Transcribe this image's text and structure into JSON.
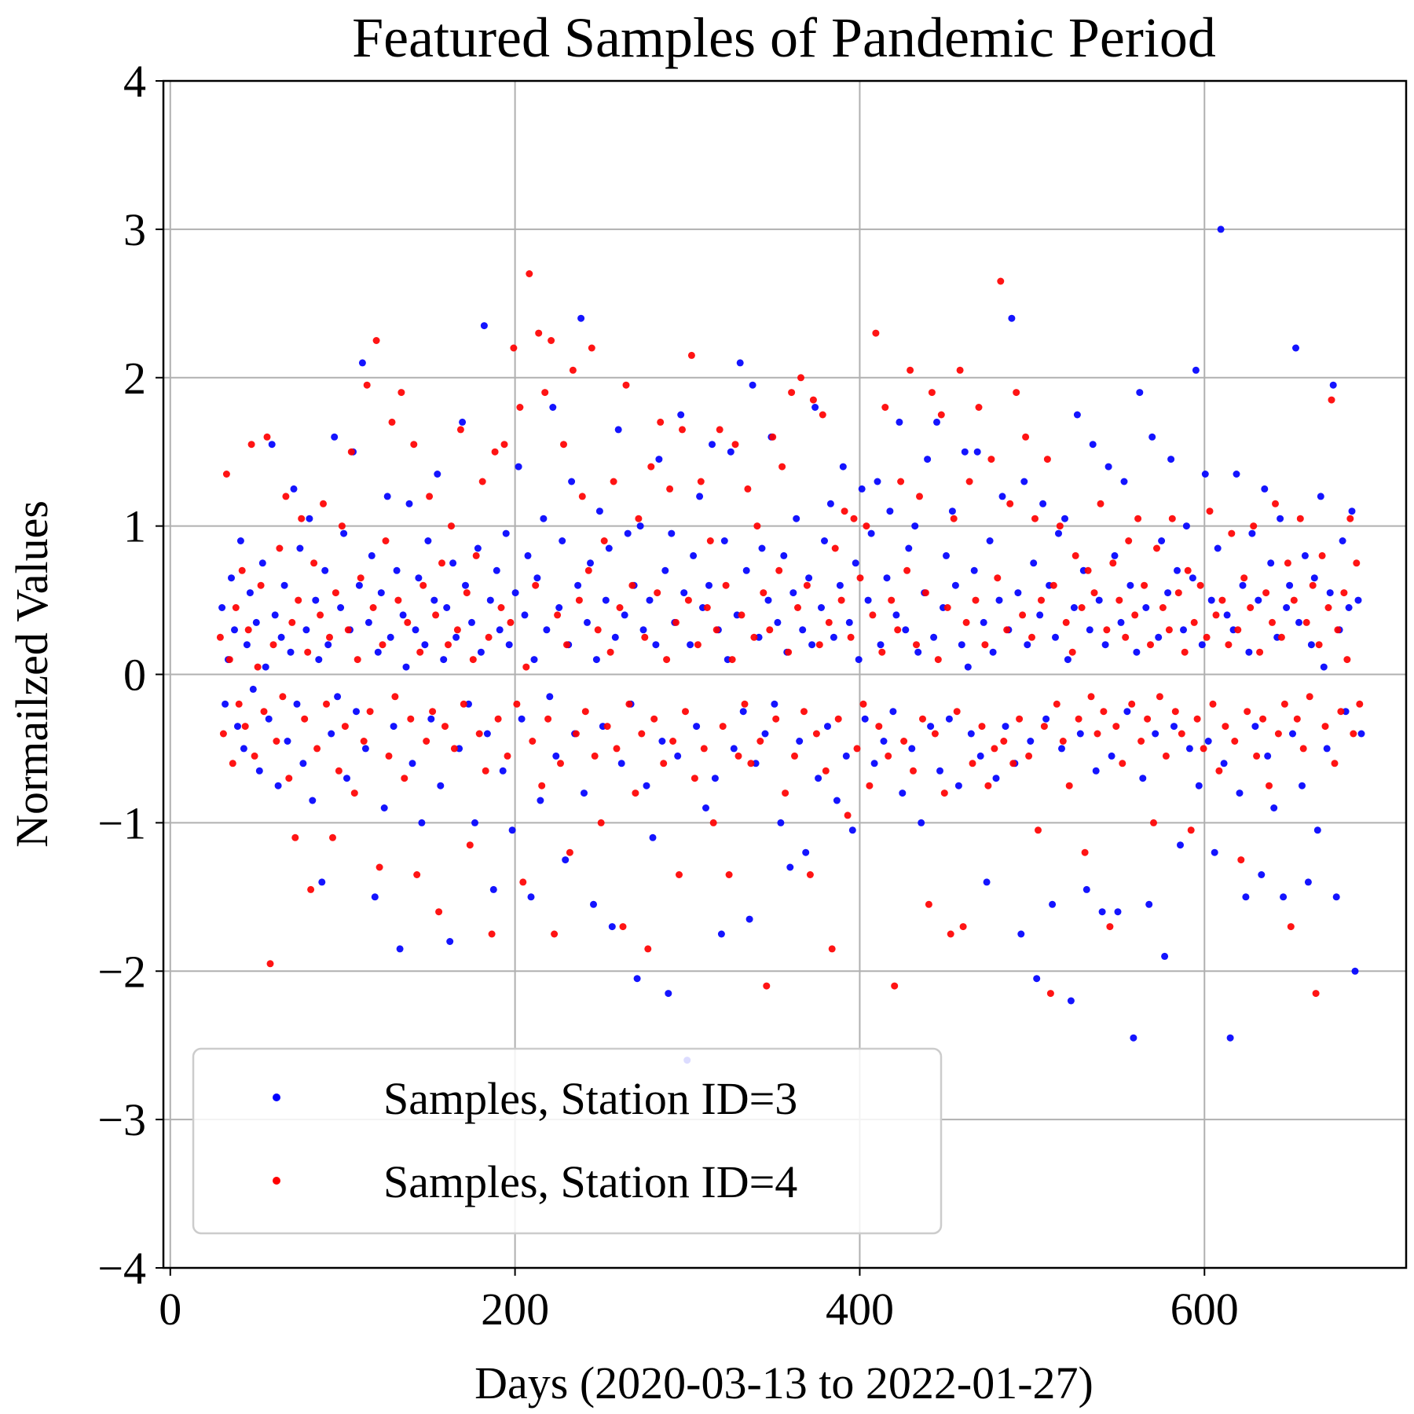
{
  "chart_data": {
    "type": "scatter",
    "title": "Featured Samples of Pandemic Period",
    "xlabel": "Days (2020-03-13 to 2022-01-27)",
    "ylabel": "Normailzed Values",
    "xlim": [
      -4,
      717
    ],
    "ylim": [
      -4,
      4
    ],
    "x_ticks": [
      0,
      200,
      400,
      600
    ],
    "y_ticks": [
      -4,
      -3,
      -2,
      -1,
      0,
      1,
      2,
      3,
      4
    ],
    "x_tick_labels": [
      "0",
      "200",
      "400",
      "600"
    ],
    "y_tick_labels": [
      "−4",
      "−3",
      "−2",
      "−1",
      "0",
      "1",
      "2",
      "3",
      "4"
    ],
    "grid": true,
    "legend_position": "lower-left",
    "series": [
      {
        "name": "Samples, Station ID=3",
        "color": "#0000ff",
        "x_start": 30,
        "x_end": 691,
        "values": [
          0.45,
          -0.2,
          0.1,
          0.65,
          0.3,
          -0.35,
          0.9,
          -0.5,
          0.2,
          0.55,
          -0.1,
          0.35,
          -0.65,
          0.75,
          0.05,
          -0.3,
          1.55,
          0.4,
          -0.75,
          0.25,
          0.6,
          -0.45,
          0.15,
          1.25,
          -0.2,
          0.85,
          -0.6,
          0.3,
          1.05,
          -0.85,
          0.5,
          0.1,
          -1.4,
          0.7,
          0.2,
          -0.4,
          1.6,
          -0.15,
          0.45,
          0.95,
          -0.7,
          0.3,
          1.5,
          -0.25,
          0.6,
          2.1,
          -0.5,
          0.35,
          0.8,
          -1.5,
          0.15,
          0.55,
          -0.9,
          1.2,
          0.25,
          -0.35,
          0.7,
          -1.85,
          0.4,
          0.05,
          1.15,
          -0.6,
          0.3,
          0.65,
          -1.0,
          0.2,
          0.9,
          -0.3,
          0.5,
          1.35,
          -0.75,
          0.1,
          0.45,
          -1.8,
          0.75,
          0.25,
          -0.5,
          1.7,
          0.6,
          -0.2,
          0.35,
          -1.0,
          0.85,
          0.15,
          2.35,
          -0.4,
          0.5,
          -1.45,
          0.7,
          0.3,
          -0.65,
          0.95,
          0.2,
          -1.05,
          0.55,
          1.4,
          -0.3,
          0.4,
          0.8,
          -1.5,
          0.1,
          0.65,
          -0.85,
          1.05,
          0.3,
          -0.15,
          1.8,
          -0.55,
          0.45,
          0.9,
          -1.25,
          0.2,
          1.3,
          -0.4,
          0.6,
          2.4,
          -0.8,
          0.35,
          0.75,
          -1.55,
          0.1,
          1.1,
          -0.35,
          0.5,
          0.85,
          -1.7,
          0.25,
          1.65,
          -0.6,
          0.4,
          0.95,
          -0.2,
          0.6,
          -2.05,
          1.0,
          0.3,
          -0.75,
          0.5,
          -1.1,
          0.2,
          1.45,
          -0.45,
          0.7,
          -2.15,
          0.95,
          0.35,
          -0.55,
          1.75,
          0.55,
          -2.6,
          0.2,
          0.8,
          -0.35,
          1.2,
          0.45,
          -0.9,
          0.6,
          1.55,
          -0.7,
          0.3,
          -1.75,
          0.9,
          0.1,
          1.5,
          -0.5,
          0.4,
          2.1,
          -0.25,
          0.7,
          -1.65,
          1.95,
          -0.6,
          0.25,
          0.85,
          -0.4,
          0.5,
          1.6,
          -0.2,
          0.35,
          -1.0,
          0.8,
          0.15,
          -1.3,
          0.55,
          1.05,
          -0.45,
          0.3,
          -1.2,
          0.65,
          0.2,
          1.8,
          -0.7,
          0.45,
          0.9,
          -0.35,
          1.15,
          0.25,
          -0.85,
          0.6,
          1.4,
          -0.55,
          0.35,
          -1.05,
          0.75,
          0.1,
          1.25,
          -0.3,
          0.5,
          0.95,
          -0.6,
          1.3,
          0.2,
          -0.45,
          0.65,
          1.1,
          -0.25,
          0.4,
          1.7,
          -0.8,
          0.3,
          0.85,
          -0.5,
          1.0,
          0.15,
          -1.0,
          0.55,
          1.45,
          -0.35,
          0.25,
          1.7,
          -0.65,
          0.45,
          0.8,
          -0.3,
          1.1,
          0.6,
          -0.75,
          0.2,
          1.5,
          0.05,
          -0.4,
          0.7,
          1.5,
          -0.55,
          0.35,
          -1.4,
          0.9,
          0.15,
          -0.7,
          0.5,
          1.2,
          -0.35,
          0.3,
          2.4,
          -0.6,
          0.55,
          -1.75,
          1.3,
          0.2,
          -0.45,
          0.75,
          -2.05,
          0.4,
          1.15,
          -0.3,
          0.6,
          -1.55,
          0.25,
          0.95,
          -0.5,
          1.05,
          0.1,
          -2.2,
          0.45,
          1.75,
          -0.4,
          0.7,
          -1.45,
          0.3,
          1.55,
          -0.65,
          0.5,
          -1.6,
          0.2,
          1.4,
          -0.55,
          0.8,
          -1.6,
          0.35,
          1.3,
          -0.25,
          0.6,
          -2.45,
          0.15,
          1.9,
          -0.7,
          0.45,
          -1.55,
          1.6,
          -0.4,
          0.25,
          0.9,
          -1.9,
          0.55,
          1.45,
          -0.35,
          0.7,
          -1.15,
          0.3,
          1.0,
          -0.5,
          0.65,
          2.05,
          -0.75,
          0.2,
          1.35,
          -0.45,
          0.5,
          -1.2,
          0.85,
          3.0,
          -0.6,
          0.4,
          -2.45,
          0.3,
          1.35,
          -0.8,
          0.6,
          -1.5,
          0.15,
          0.95,
          -0.35,
          0.5,
          -1.35,
          1.25,
          -0.55,
          0.75,
          -0.9,
          0.25,
          1.05,
          -1.5,
          0.45,
          0.6,
          -0.4,
          2.2,
          0.35,
          -0.75,
          0.8,
          -1.4,
          0.2,
          0.65,
          -1.05,
          1.2,
          0.05,
          -0.5,
          0.55,
          1.95,
          -1.5,
          0.3,
          0.9,
          -0.25,
          0.45,
          1.1,
          -2.0,
          0.5,
          -0.4
        ]
      },
      {
        "name": "Samples, Station ID=4",
        "color": "#ff0000",
        "x_start": 29,
        "x_end": 690,
        "values": [
          0.25,
          -0.4,
          1.35,
          0.1,
          -0.6,
          0.45,
          -0.2,
          0.7,
          -0.35,
          0.3,
          1.55,
          -0.55,
          0.05,
          0.6,
          -0.25,
          1.6,
          -1.95,
          0.2,
          -0.45,
          0.85,
          -0.15,
          1.2,
          -0.7,
          0.35,
          -1.1,
          0.5,
          1.05,
          -0.3,
          0.15,
          -1.45,
          0.75,
          -0.5,
          0.4,
          1.15,
          -0.2,
          0.25,
          -1.1,
          0.55,
          -0.65,
          1.0,
          -0.35,
          0.3,
          1.5,
          -0.8,
          0.1,
          0.65,
          -0.45,
          1.95,
          -0.25,
          0.45,
          2.25,
          -1.3,
          0.2,
          0.9,
          -0.55,
          1.7,
          -0.15,
          0.5,
          1.9,
          -0.7,
          0.35,
          -0.3,
          1.55,
          -1.35,
          0.15,
          0.6,
          -0.45,
          1.2,
          -0.25,
          0.4,
          -1.6,
          0.75,
          -0.35,
          0.2,
          1.0,
          -0.5,
          0.3,
          1.65,
          -0.2,
          0.55,
          -1.15,
          0.1,
          0.8,
          -0.4,
          1.3,
          -0.65,
          0.25,
          -1.75,
          1.5,
          -0.3,
          0.45,
          1.55,
          -0.55,
          0.35,
          2.2,
          -0.2,
          1.8,
          -1.4,
          0.05,
          2.7,
          -0.45,
          0.6,
          2.3,
          -0.75,
          1.9,
          -0.3,
          2.25,
          -1.75,
          0.4,
          -0.6,
          1.55,
          0.2,
          -1.2,
          2.05,
          -0.4,
          0.5,
          1.2,
          -0.25,
          0.7,
          2.2,
          -0.55,
          0.3,
          -1.0,
          0.9,
          -0.35,
          0.15,
          1.3,
          -0.5,
          0.45,
          -1.7,
          1.95,
          -0.2,
          0.6,
          -0.8,
          1.05,
          -0.4,
          0.25,
          -1.85,
          1.4,
          -0.3,
          0.55,
          1.7,
          -0.6,
          0.1,
          1.25,
          -0.45,
          0.35,
          -1.35,
          1.65,
          -0.25,
          0.5,
          2.15,
          -0.7,
          0.2,
          1.3,
          -0.5,
          0.45,
          0.9,
          -1.0,
          0.3,
          1.65,
          -0.35,
          0.6,
          -1.35,
          0.1,
          1.55,
          -0.55,
          0.4,
          -0.2,
          1.25,
          -0.6,
          0.25,
          1.0,
          -0.45,
          0.55,
          -2.1,
          0.3,
          1.6,
          -0.3,
          0.7,
          1.4,
          -0.8,
          0.15,
          1.9,
          -0.55,
          0.45,
          2.0,
          -0.25,
          0.6,
          -1.35,
          1.85,
          -0.4,
          0.2,
          1.75,
          -0.65,
          0.35,
          -1.85,
          0.85,
          -0.3,
          0.5,
          1.1,
          -0.95,
          0.25,
          1.05,
          -0.5,
          0.65,
          -0.2,
          1.0,
          -0.75,
          0.4,
          2.3,
          -0.35,
          0.15,
          1.8,
          -0.55,
          0.5,
          -2.1,
          0.3,
          1.3,
          -0.45,
          0.7,
          2.05,
          -0.65,
          0.2,
          1.2,
          -0.3,
          0.55,
          -1.55,
          1.9,
          -0.4,
          0.1,
          1.75,
          -0.8,
          0.45,
          -1.75,
          1.05,
          -0.25,
          2.05,
          -1.7,
          0.35,
          1.3,
          -0.6,
          0.5,
          1.8,
          -0.35,
          0.2,
          -0.75,
          1.45,
          -0.5,
          0.65,
          2.65,
          -0.45,
          0.3,
          1.15,
          -0.6,
          1.9,
          -0.3,
          0.4,
          1.6,
          -0.55,
          0.25,
          1.05,
          -1.05,
          0.5,
          -0.35,
          1.45,
          -2.15,
          0.6,
          -0.2,
          1.0,
          -0.45,
          0.35,
          -0.75,
          0.15,
          0.8,
          -0.3,
          0.45,
          -1.2,
          0.7,
          -0.15,
          0.55,
          -0.4,
          1.15,
          -0.25,
          0.3,
          -1.7,
          0.75,
          -0.35,
          0.5,
          -0.6,
          0.25,
          0.9,
          -0.2,
          0.4,
          1.05,
          -0.45,
          0.6,
          -0.3,
          0.2,
          -1.0,
          0.85,
          -0.15,
          0.45,
          -0.55,
          0.3,
          1.05,
          -0.25,
          0.55,
          -0.4,
          0.15,
          0.7,
          -1.05,
          0.35,
          -0.3,
          0.6,
          -0.5,
          0.25,
          1.1,
          -0.2,
          0.4,
          -0.65,
          0.5,
          -0.35,
          0.2,
          0.95,
          -0.45,
          0.3,
          -1.25,
          0.65,
          -0.25,
          0.45,
          1.0,
          -0.55,
          0.15,
          -0.3,
          0.55,
          -0.75,
          0.35,
          1.15,
          -0.4,
          0.25,
          -0.2,
          0.75,
          -1.7,
          0.5,
          -0.3,
          1.05,
          -0.5,
          0.35,
          -0.15,
          0.6,
          -2.15,
          0.2,
          0.8,
          -0.35,
          0.45,
          1.85,
          -0.6,
          0.3,
          -0.25,
          0.55,
          0.1,
          1.05,
          -0.4,
          0.75,
          -0.2
        ]
      }
    ]
  }
}
